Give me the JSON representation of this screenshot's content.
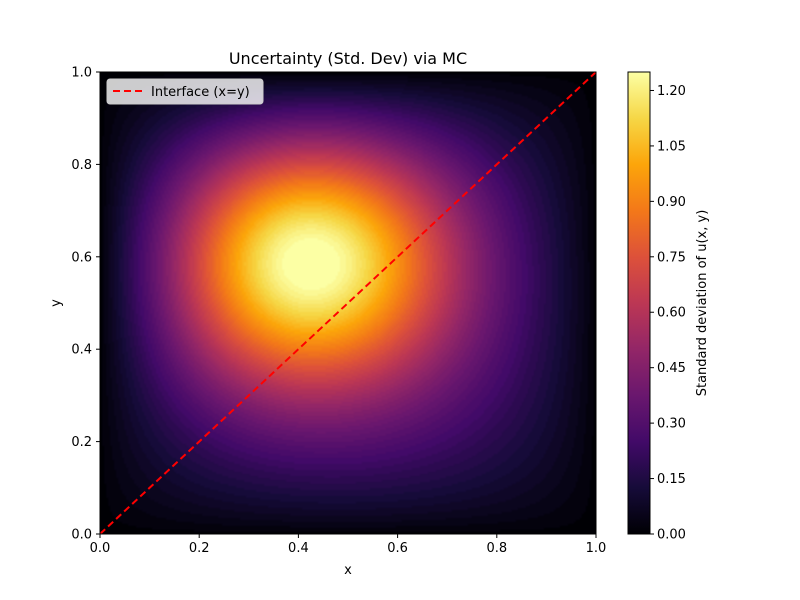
{
  "chart_data": {
    "type": "heatmap",
    "title": "Uncertainty (Std. Dev) via MC",
    "xlabel": "x",
    "ylabel": "y",
    "xlim": [
      0.0,
      1.0
    ],
    "ylim": [
      0.0,
      1.0
    ],
    "x_ticks": [
      "0.0",
      "0.2",
      "0.4",
      "0.6",
      "0.8",
      "1.0"
    ],
    "y_ticks": [
      "0.0",
      "0.2",
      "0.4",
      "0.6",
      "0.8",
      "1.0"
    ],
    "x_tick_values": [
      0.0,
      0.2,
      0.4,
      0.6,
      0.8,
      1.0
    ],
    "y_tick_values": [
      0.0,
      0.2,
      0.4,
      0.6,
      0.8,
      1.0
    ],
    "colormap": "inferno",
    "field": {
      "peak_value": 1.25,
      "peak_location": [
        0.39,
        0.62
      ],
      "boundary_value": 0.0
    },
    "colorbar": {
      "label": "Standard deviation of u(x, y)",
      "range": [
        0.0,
        1.25
      ],
      "ticks": [
        "0.00",
        "0.15",
        "0.30",
        "0.45",
        "0.60",
        "0.75",
        "0.90",
        "1.05",
        "1.20"
      ],
      "tick_values": [
        0.0,
        0.15,
        0.3,
        0.45,
        0.6,
        0.75,
        0.9,
        1.05,
        1.2
      ]
    },
    "overlay_line": {
      "label": "Interface (x=y)",
      "style": "dashed",
      "color": "#ff0000",
      "x": [
        0.0,
        1.0
      ],
      "y": [
        0.0,
        1.0
      ]
    },
    "legend_position": "upper-left",
    "grid": false
  }
}
